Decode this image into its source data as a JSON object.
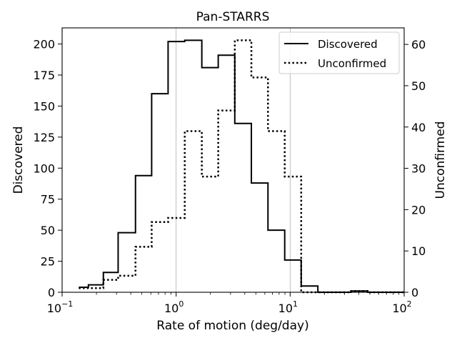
{
  "chart_data": {
    "type": "step-histogram",
    "title": "Pan-STARRS",
    "xlabel": "Rate of motion (deg/day)",
    "ylabel_left": "Discovered",
    "ylabel_right": "Unconfirmed",
    "xscale": "log",
    "xlim": [
      0.1,
      100
    ],
    "ylim_left": [
      0,
      213
    ],
    "ylim_right": [
      0,
      64
    ],
    "x_ticks": [
      {
        "value": 0.1,
        "base": "10",
        "exp": "−1"
      },
      {
        "value": 1,
        "base": "10",
        "exp": "0"
      },
      {
        "value": 10,
        "base": "10",
        "exp": "1"
      },
      {
        "value": 100,
        "base": "10",
        "exp": "2"
      }
    ],
    "y_ticks_left": [
      0,
      25,
      50,
      75,
      100,
      125,
      150,
      175,
      200
    ],
    "y_ticks_right": [
      0,
      10,
      20,
      30,
      40,
      50,
      60
    ],
    "grid": "vertical lines at decades",
    "legend_position": "upper right",
    "bin_edges": [
      0.14,
      0.17,
      0.23,
      0.31,
      0.44,
      0.61,
      0.85,
      1.19,
      1.68,
      2.34,
      3.27,
      4.57,
      6.39,
      8.96,
      12.5,
      17.5,
      24.5,
      34.2,
      47.8,
      100
    ],
    "series": [
      {
        "name": "Discovered",
        "axis": "left",
        "style": "solid",
        "values": [
          4,
          6,
          16,
          48,
          94,
          160,
          202,
          203,
          181,
          191,
          136,
          88,
          50,
          26,
          5,
          0,
          0,
          1,
          0
        ]
      },
      {
        "name": "Unconfirmed",
        "axis": "right",
        "style": "dotted",
        "values": [
          1,
          1,
          3,
          4,
          11,
          17,
          18,
          39,
          28,
          44,
          61,
          52,
          39,
          28,
          0,
          0,
          0,
          0.3,
          0
        ]
      }
    ]
  }
}
